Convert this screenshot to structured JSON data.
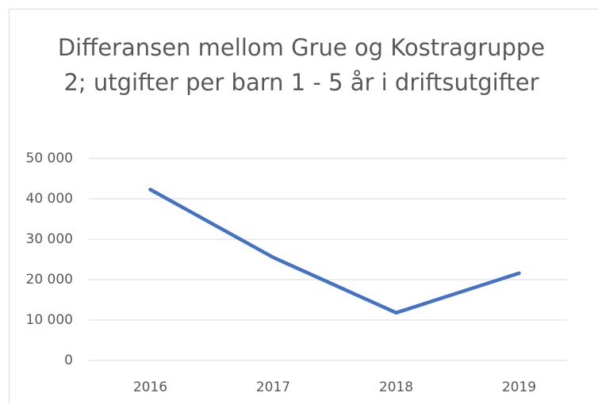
{
  "chart_data": {
    "type": "line",
    "title": "Differansen mellom Grue og Kostragruppe 2; utgifter per barn 1 - 5 år i driftsutgifter",
    "categories": [
      "2016",
      "2017",
      "2018",
      "2019"
    ],
    "values": [
      42300,
      25500,
      11800,
      21600
    ],
    "color": "#4472c4",
    "ylim": [
      0,
      50000
    ],
    "yticks": [
      0,
      {
        "value": 10000,
        "label": "10 000"
      },
      {
        "value": 20000,
        "label": "20 000"
      },
      {
        "value": 30000,
        "label": "30 000"
      },
      {
        "value": 40000,
        "label": "40 000"
      },
      {
        "value": 50000,
        "label": "50 000"
      }
    ],
    "grid": true
  }
}
